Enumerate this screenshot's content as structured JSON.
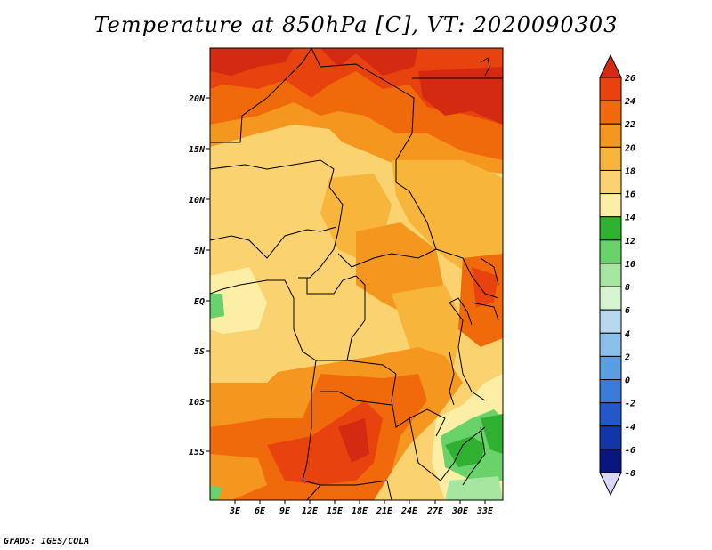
{
  "title": "Temperature at 850hPa [C], VT: 2020090303",
  "credit": "GrADS: IGES/COLA",
  "map": {
    "lat_labels": [
      "20N",
      "15N",
      "10N",
      "5N",
      "EQ",
      "5S",
      "10S",
      "15S"
    ],
    "lon_labels": [
      "3E",
      "6E",
      "9E",
      "12E",
      "15E",
      "18E",
      "21E",
      "24E",
      "27E",
      "30E",
      "33E"
    ]
  },
  "colorbar": {
    "units": "C",
    "levels": [
      "26",
      "24",
      "22",
      "20",
      "18",
      "16",
      "14",
      "12",
      "10",
      "8",
      "6",
      "4",
      "2",
      "0",
      "-2",
      "-4",
      "-6",
      "-8"
    ],
    "colors": [
      "#d42a12",
      "#e8420e",
      "#f06a0c",
      "#f5961e",
      "#f7b53c",
      "#fbd270",
      "#fdeea6",
      "#30b030",
      "#6ad26a",
      "#a6e6a0",
      "#d6f3d2",
      "#b8d8f0",
      "#8cc0ea",
      "#5a9ee2",
      "#3a7ad8",
      "#2458c8",
      "#1236a8",
      "#0a1680"
    ],
    "top_arrow_color": "#d42a12",
    "bottom_arrow_color": "#d8d8f8"
  }
}
